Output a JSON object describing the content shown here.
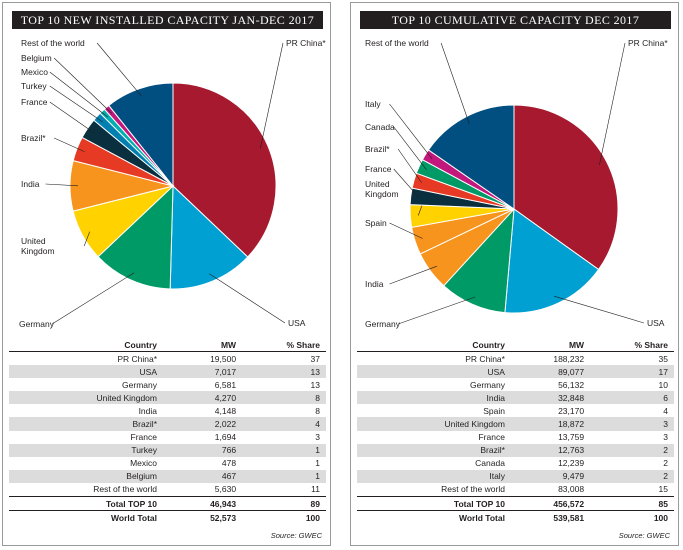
{
  "colors": {
    "PR China*": "#a6192e",
    "USA": "#00a0d2",
    "Germany": "#009a66",
    "United Kingdom": "#ffd200",
    "Spain": "#f7941d",
    "India": "#f7941d",
    "Brazil*": "#e63a25",
    "France": "#0a2f3f",
    "Turkey": "#0080b0",
    "Mexico": "#00b0b0",
    "Belgium": "#c2187e",
    "Canada": "#009a66",
    "Italy": "#c2187e",
    "Rest of the world": "#004f80"
  },
  "chart_data": [
    {
      "type": "pie",
      "title": "TOP 10 NEW INSTALLED CAPACITY JAN-DEC 2017",
      "labels": [
        "PR China*",
        "USA",
        "Germany",
        "United Kingdom",
        "India",
        "Brazil*",
        "France",
        "Turkey",
        "Mexico",
        "Belgium",
        "Rest of the world"
      ],
      "values": [
        19500,
        7017,
        6581,
        4270,
        4148,
        2022,
        1694,
        766,
        478,
        467,
        5630
      ],
      "table": {
        "headers": [
          "Country",
          "MW",
          "% Share"
        ],
        "rows": [
          [
            "PR China*",
            "19,500",
            "37"
          ],
          [
            "USA",
            "7,017",
            "13"
          ],
          [
            "Germany",
            "6,581",
            "13"
          ],
          [
            "United Kingdom",
            "4,270",
            "8"
          ],
          [
            "India",
            "4,148",
            "8"
          ],
          [
            "Brazil*",
            "2,022",
            "4"
          ],
          [
            "France",
            "1,694",
            "3"
          ],
          [
            "Turkey",
            "766",
            "1"
          ],
          [
            "Mexico",
            "478",
            "1"
          ],
          [
            "Belgium",
            "467",
            "1"
          ],
          [
            "Rest of the world",
            "5,630",
            "11"
          ]
        ],
        "total_top10": [
          "Total TOP 10",
          "46,943",
          "89"
        ],
        "world_total": [
          "World Total",
          "52,573",
          "100"
        ]
      },
      "source": "Source: GWEC"
    },
    {
      "type": "pie",
      "title": "TOP 10 CUMULATIVE CAPACITY DEC 2017",
      "labels": [
        "PR China*",
        "USA",
        "Germany",
        "India",
        "Spain",
        "United Kingdom",
        "France",
        "Brazil*",
        "Canada",
        "Italy",
        "Rest of the world"
      ],
      "values": [
        188232,
        89077,
        56132,
        32848,
        23170,
        18872,
        13759,
        12763,
        12239,
        9479,
        83008
      ],
      "table": {
        "headers": [
          "Country",
          "MW",
          "% Share"
        ],
        "rows": [
          [
            "PR China*",
            "188,232",
            "35"
          ],
          [
            "USA",
            "89,077",
            "17"
          ],
          [
            "Germany",
            "56,132",
            "10"
          ],
          [
            "India",
            "32,848",
            "6"
          ],
          [
            "Spain",
            "23,170",
            "4"
          ],
          [
            "United Kingdom",
            "18,872",
            "3"
          ],
          [
            "France",
            "13,759",
            "3"
          ],
          [
            "Brazil*",
            "12,763",
            "2"
          ],
          [
            "Canada",
            "12,239",
            "2"
          ],
          [
            "Italy",
            "9,479",
            "2"
          ],
          [
            "Rest of the world",
            "83,008",
            "15"
          ]
        ],
        "total_top10": [
          "Total TOP 10",
          "456,572",
          "85"
        ],
        "world_total": [
          "World Total",
          "539,581",
          "100"
        ]
      },
      "source": "Source: GWEC"
    }
  ]
}
